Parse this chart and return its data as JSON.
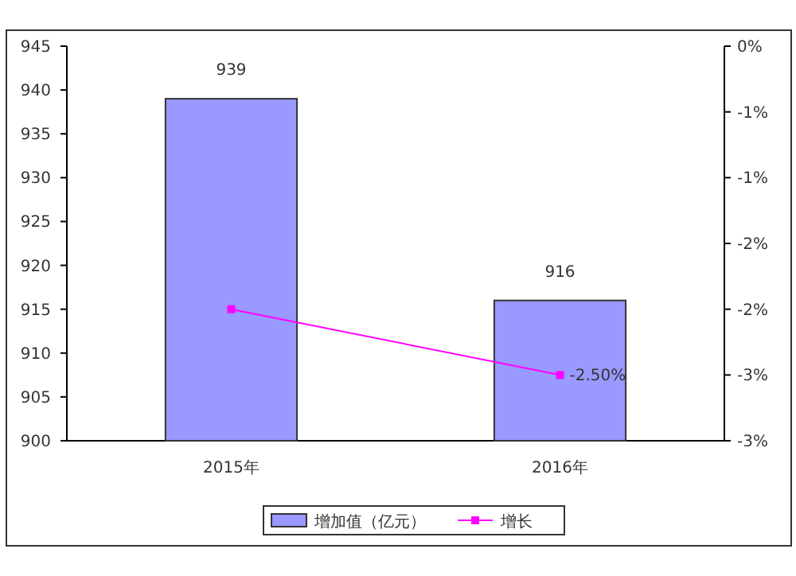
{
  "chart_data": {
    "type": "bar",
    "categories": [
      "2015年",
      "2016年"
    ],
    "series": [
      {
        "name": "增加值（亿元）",
        "color": "#9999ff",
        "values": [
          939,
          916
        ],
        "value_labels": [
          "939",
          "916"
        ]
      },
      {
        "name": "增长",
        "type": "line",
        "axis": "y2",
        "color": "#ff00ff",
        "marker": "square",
        "values": [
          -2.0,
          -2.5
        ],
        "value_labels": [
          null,
          "-2.50%"
        ]
      }
    ],
    "ylim": [
      900,
      945
    ],
    "yticks": [
      900,
      905,
      910,
      915,
      920,
      925,
      930,
      935,
      940,
      945
    ],
    "y2lim": [
      -3,
      0
    ],
    "y2ticks": [
      {
        "value": -3,
        "label": "-3%"
      },
      {
        "value": -2.5,
        "label": "-3%"
      },
      {
        "value": -2,
        "label": "-2%"
      },
      {
        "value": -1.5,
        "label": "-2%"
      },
      {
        "value": -1,
        "label": "-1%"
      },
      {
        "value": -0.5,
        "label": "-1%"
      },
      {
        "value": 0,
        "label": "0%"
      }
    ],
    "grid": false,
    "legend": "bottom"
  }
}
